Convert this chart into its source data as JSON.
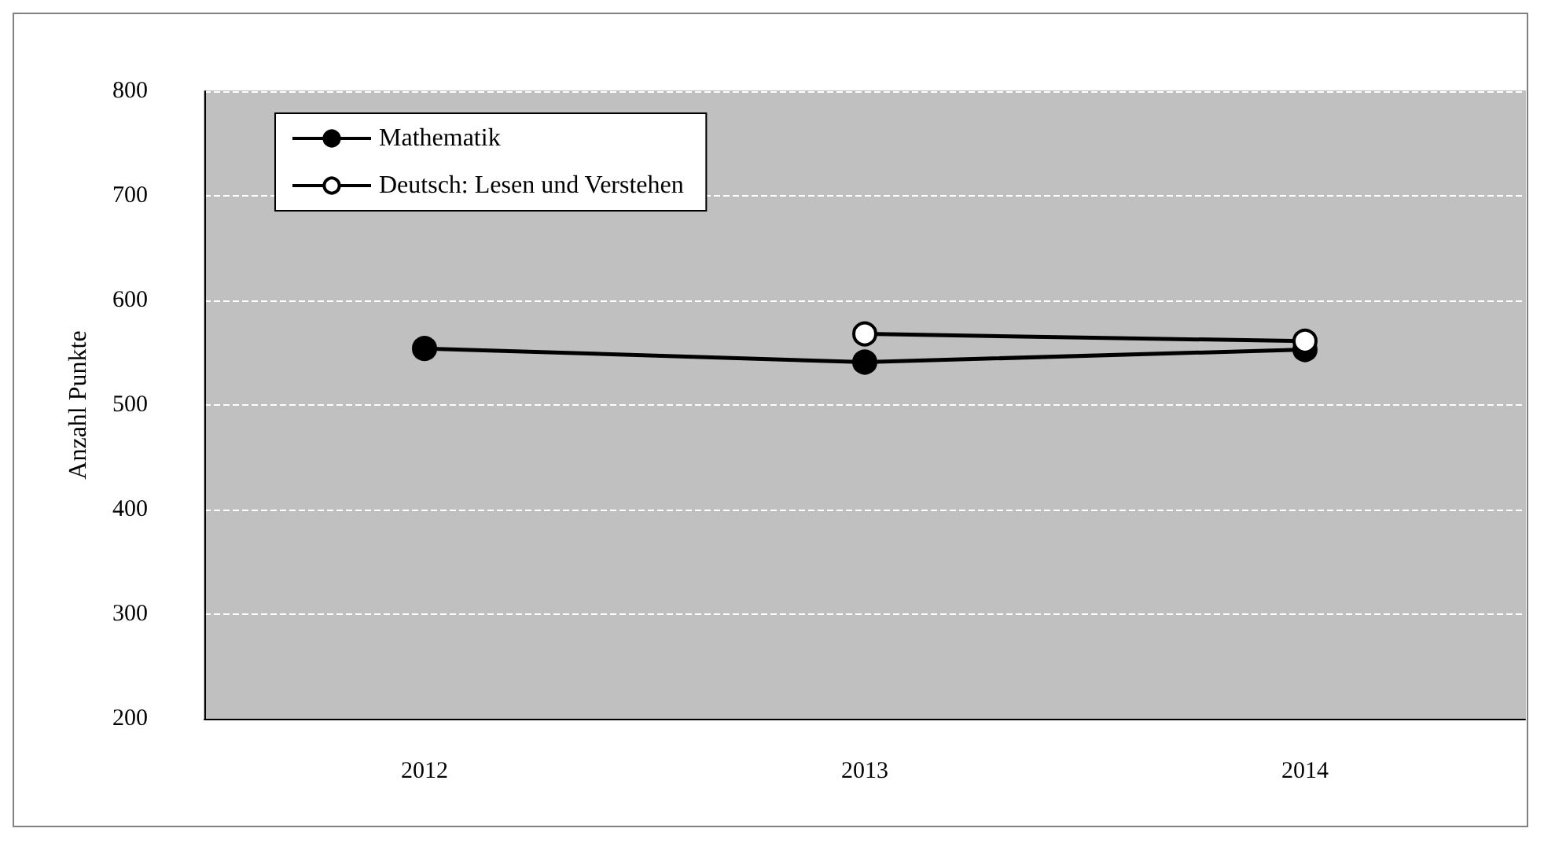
{
  "chart_data": {
    "type": "line",
    "ylabel": "Anzahl Punkte",
    "categories": [
      "2012",
      "2013",
      "2014"
    ],
    "series": [
      {
        "name": "Mathematik",
        "color": "#000000",
        "values": [
          554,
          541,
          553
        ],
        "marker": "circle"
      },
      {
        "name": "Deutsch: Lesen und Verstehen",
        "color": "#000000",
        "values": [
          null,
          568,
          561
        ],
        "marker": "circle"
      }
    ],
    "ylim": [
      200,
      800
    ],
    "yticks": [
      200,
      300,
      400,
      500,
      600,
      700,
      800
    ],
    "grid": "y",
    "legend": "top left",
    "line_style": "solid"
  }
}
